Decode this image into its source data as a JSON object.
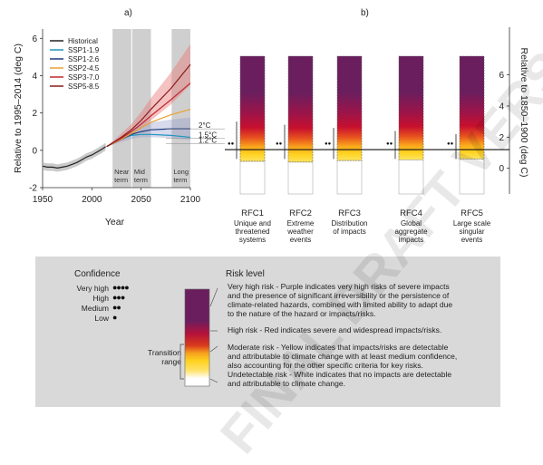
{
  "panel_a": {
    "label": "a)"
  },
  "panel_b": {
    "label": "b)"
  },
  "chart_data": [
    {
      "type": "line",
      "ylabel": "Relative to 1995–2014 (deg C)",
      "xlabel": "Year",
      "xlim": [
        1950,
        2100
      ],
      "ylim": [
        -2,
        6.5
      ],
      "x_ticks": [
        1950,
        2000,
        2050,
        2100
      ],
      "y_ticks": [
        -2,
        0,
        2,
        4,
        6
      ],
      "legend_position": "top-left",
      "term_bands": [
        {
          "label_line1": "Near",
          "label_line2": "term",
          "x": [
            2021,
            2040
          ]
        },
        {
          "label_line1": "Mid",
          "label_line2": "term",
          "x": [
            2041,
            2060
          ]
        },
        {
          "label_line1": "Long",
          "label_line2": "term",
          "x": [
            2081,
            2100
          ]
        }
      ],
      "reference_lines": [
        {
          "label": "2°C",
          "y": 1.15
        },
        {
          "label": "1.5°C",
          "y": 0.65
        },
        {
          "label": "1.2°C",
          "y": 0.35
        }
      ],
      "series": [
        {
          "name": "Historical",
          "color": "#222222",
          "x": [
            1950,
            1955,
            1960,
            1965,
            1970,
            1975,
            1980,
            1985,
            1990,
            1995,
            2000,
            2005,
            2010,
            2014
          ],
          "y": [
            -0.85,
            -0.9,
            -0.9,
            -0.95,
            -0.9,
            -0.85,
            -0.75,
            -0.65,
            -0.5,
            -0.35,
            -0.25,
            -0.1,
            0.05,
            0.2
          ]
        },
        {
          "name": "SSP1-1.9",
          "color": "#1e96be",
          "x": [
            2015,
            2030,
            2040,
            2050,
            2060,
            2080,
            2100
          ],
          "y": [
            0.2,
            0.6,
            0.8,
            0.85,
            0.85,
            0.8,
            0.7
          ]
        },
        {
          "name": "SSP1-2.6",
          "color": "#1d3b80",
          "x": [
            2015,
            2030,
            2040,
            2050,
            2060,
            2080,
            2100
          ],
          "y": [
            0.2,
            0.6,
            0.85,
            1.0,
            1.1,
            1.15,
            1.15
          ]
        },
        {
          "name": "SSP2-4.5",
          "color": "#e8a331",
          "x": [
            2015,
            2030,
            2040,
            2050,
            2060,
            2080,
            2100
          ],
          "y": [
            0.2,
            0.6,
            0.9,
            1.2,
            1.5,
            1.9,
            2.2
          ]
        },
        {
          "name": "SSP3-7.0",
          "color": "#c0272d",
          "x": [
            2015,
            2030,
            2040,
            2050,
            2060,
            2080,
            2100
          ],
          "y": [
            0.2,
            0.65,
            1.0,
            1.4,
            1.85,
            2.7,
            3.6
          ]
        },
        {
          "name": "SSP5-8.5",
          "color": "#8b1a1a",
          "x": [
            2015,
            2030,
            2040,
            2050,
            2060,
            2080,
            2100
          ],
          "y": [
            0.2,
            0.7,
            1.1,
            1.6,
            2.2,
            3.3,
            4.6
          ]
        }
      ]
    },
    {
      "type": "heatmap",
      "ylabel": "Relative to 1850–1900 (deg C)",
      "y_ticks": [
        0,
        2,
        4,
        6
      ],
      "ylim": [
        -0.6,
        7.2
      ],
      "present_line_y": 1.2,
      "columns": [
        {
          "name": "RFC1",
          "desc": [
            "Unique and",
            "threatened",
            "systems"
          ]
        },
        {
          "name": "RFC2",
          "desc": [
            "Extreme",
            "weather",
            "events"
          ]
        },
        {
          "name": "RFC3",
          "desc": [
            "Distribution",
            "of impacts"
          ]
        },
        {
          "name": "RFC4",
          "desc": [
            "Global",
            "aggregate",
            "impacts"
          ]
        },
        {
          "name": "RFC5",
          "desc": [
            "Large scale",
            "singular",
            "events"
          ]
        }
      ]
    }
  ],
  "legend": {
    "confidence_title": "Confidence",
    "confidence_levels": [
      {
        "label": "Very high",
        "dots": "●●●●"
      },
      {
        "label": "High",
        "dots": "●●●"
      },
      {
        "label": "Medium",
        "dots": "●●"
      },
      {
        "label": "Low",
        "dots": "●"
      }
    ],
    "risk_title": "Risk level",
    "transition_label": [
      "Transition",
      "range"
    ],
    "risk_texts": [
      {
        "lines": [
          "Very high risk - Purple indicates very high risks of severe impacts",
          "and the presence of significant irreversibility or the persistence of",
          "climate-related hazards, combined with limited ability to adapt due",
          "to the nature of the hazard or impacts/risks."
        ]
      },
      {
        "lines": [
          "High risk - Red indicates severe and widespread impacts/risks."
        ]
      },
      {
        "lines": [
          "Moderate risk - Yellow indicates that impacts/risks are detectable",
          "and attributable to climate change with at least medium confidence,",
          "also accounting for the other specific criteria for key risks."
        ]
      },
      {
        "lines": [
          "Undetectable risk - White indicates that no impacts are detectable",
          "and attributable to climate change."
        ]
      }
    ],
    "colors": {
      "purple": "#6b1e5e",
      "red": "#c8102e",
      "yellow": "#ffd21f",
      "white": "#ffffff"
    }
  },
  "watermark": "FINAL DRAFT VERSION SUBJECT TO FINAL EDITS"
}
